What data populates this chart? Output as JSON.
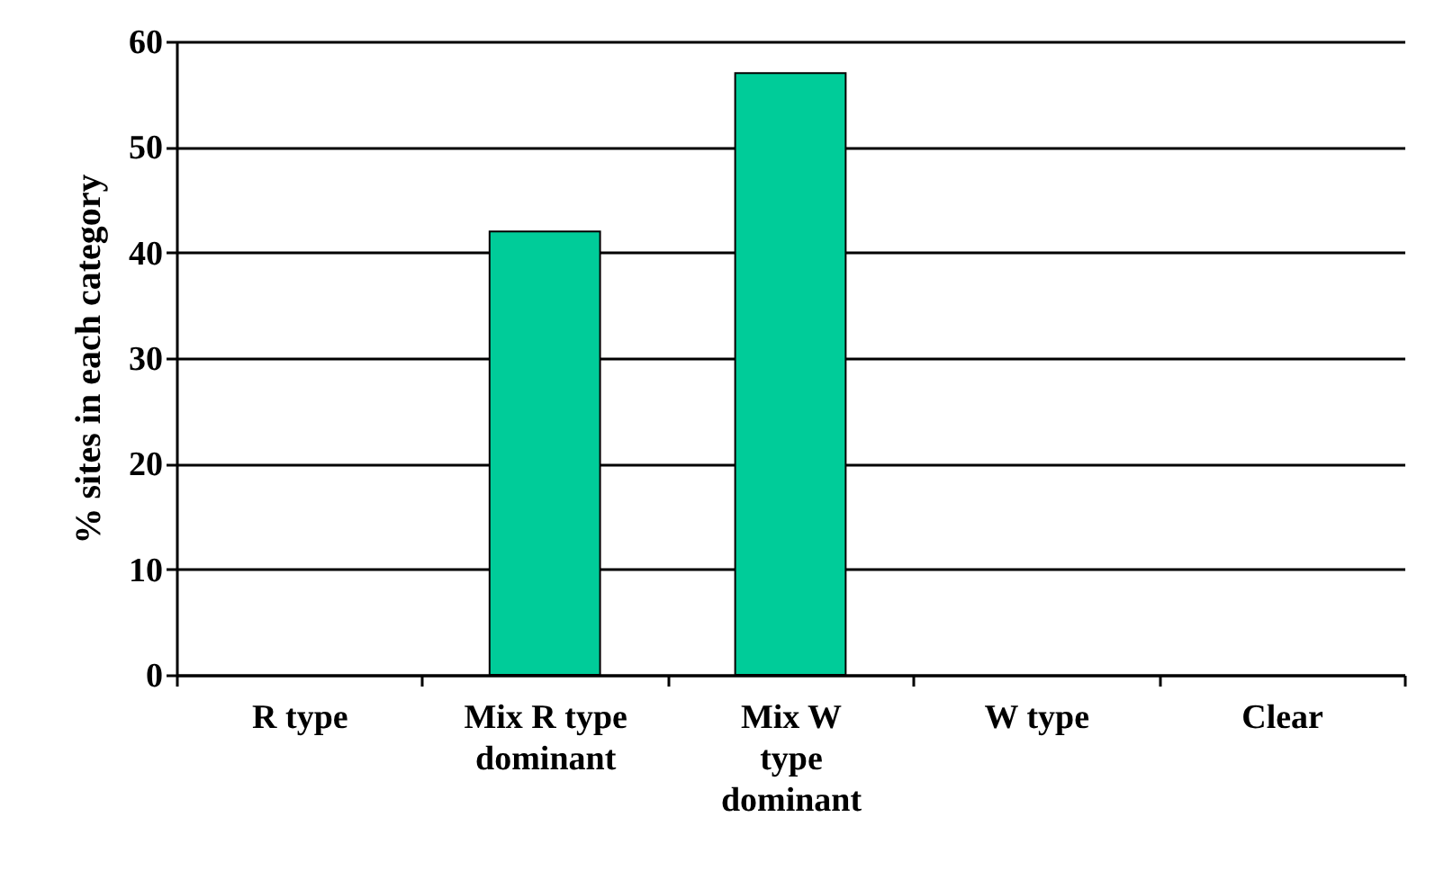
{
  "chart_data": {
    "type": "bar",
    "ylabel": "% sites in each category",
    "categories": [
      "R type",
      "Mix R type dominant",
      "Mix W type dominant",
      "W type",
      "Clear"
    ],
    "values": [
      0,
      42,
      57,
      0,
      0
    ],
    "color": "#00cc99",
    "ylim": [
      0,
      60
    ],
    "yticks": [
      0,
      10,
      20,
      30,
      40,
      50,
      60
    ],
    "grid": "y"
  }
}
